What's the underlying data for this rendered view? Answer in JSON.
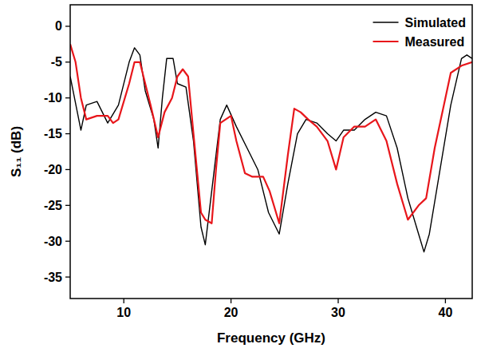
{
  "chart_data": {
    "type": "line",
    "x_label": "Frequency (GHz)",
    "y_label": "S₁₁ (dB)",
    "xlim": [
      5,
      42.5
    ],
    "xticks": [
      10,
      20,
      30,
      40
    ],
    "ylim": [
      -38,
      3
    ],
    "yticks": [
      0,
      -5,
      -10,
      -15,
      -20,
      -25,
      -30,
      -35
    ],
    "legend": "top-right",
    "series": [
      {
        "name": "Simulated",
        "color": "#000000",
        "line_style": "solid",
        "x": [
          5,
          6,
          6.5,
          7.5,
          8.5,
          9.5,
          10.5,
          11,
          11.5,
          12,
          12.8,
          13.2,
          13.6,
          14,
          14.6,
          15,
          15.8,
          16.5,
          17.2,
          17.6,
          18.2,
          19,
          19.6,
          20.5,
          21.5,
          22.5,
          23.5,
          24.5,
          25.3,
          26.2,
          27,
          28,
          29,
          29.8,
          30.5,
          31.5,
          32.5,
          33.5,
          34.5,
          35.5,
          36.5,
          37.5,
          38,
          38.5,
          39.5,
          40.5,
          41.5,
          42,
          42.5
        ],
        "values": [
          -7,
          -14.5,
          -11,
          -10.5,
          -13.5,
          -11,
          -5,
          -3,
          -4,
          -9,
          -13,
          -17,
          -10,
          -4.5,
          -4.5,
          -8,
          -8.5,
          -16,
          -28,
          -30.5,
          -23,
          -13,
          -11,
          -14,
          -17,
          -20,
          -26,
          -29,
          -22,
          -15,
          -13,
          -13.5,
          -15,
          -16,
          -14.5,
          -14.5,
          -13,
          -12,
          -12.5,
          -17,
          -24,
          -29,
          -31.5,
          -29,
          -20,
          -11,
          -4.5,
          -4,
          -4.5
        ]
      },
      {
        "name": "Measured",
        "color": "#e8161b",
        "line_style": "solid",
        "x": [
          5,
          5.5,
          6,
          6.5,
          7.5,
          8.5,
          9,
          9.5,
          10.5,
          11,
          11.5,
          12,
          12.5,
          13.2,
          13.8,
          14.5,
          15,
          15.5,
          16,
          16.5,
          17.2,
          17.6,
          18.2,
          18.6,
          19,
          19.5,
          20,
          20.5,
          21.3,
          22,
          23,
          23.6,
          24.5,
          25.3,
          25.9,
          26.5,
          27.2,
          28,
          29,
          29.8,
          30.5,
          31.5,
          32.5,
          33.5,
          34.5,
          35.5,
          36.5,
          37.5,
          38.2,
          39,
          40,
          40.5,
          41.5,
          42.5
        ],
        "values": [
          -2.5,
          -5,
          -10,
          -13,
          -12.5,
          -12.5,
          -13.5,
          -13,
          -8,
          -5,
          -5,
          -8,
          -11,
          -15.5,
          -12,
          -10,
          -7,
          -6,
          -7,
          -15,
          -26,
          -27,
          -27.5,
          -20,
          -13.5,
          -13,
          -12.5,
          -16,
          -20.5,
          -21,
          -21,
          -23,
          -27.5,
          -18,
          -11.5,
          -12,
          -13,
          -14,
          -16,
          -20,
          -15.5,
          -14,
          -14,
          -13,
          -16,
          -22,
          -27,
          -25,
          -24,
          -17,
          -10,
          -6.5,
          -5.5,
          -5
        ]
      }
    ]
  }
}
